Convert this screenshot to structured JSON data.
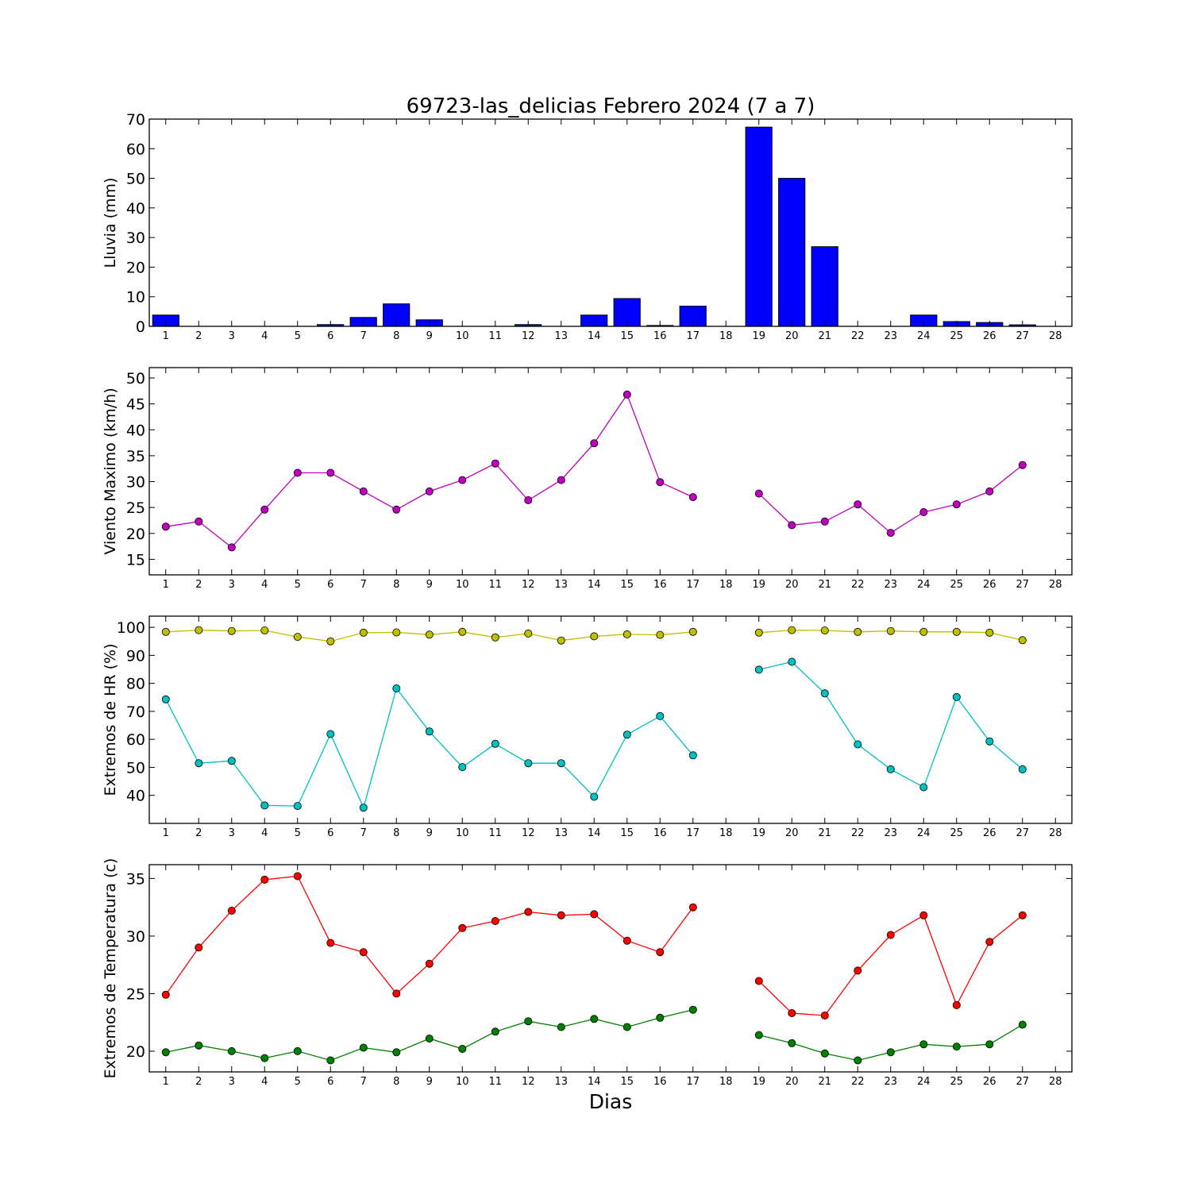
{
  "title": "69723-las_delicias Febrero 2024  (7 a 7)",
  "xlabel": "Dias",
  "colors": {
    "rain": "#0000ff",
    "wind": "#bf00bf",
    "hr_max": "#bfbf00",
    "hr_min": "#00bfbf",
    "t_max": "#ff0000",
    "t_min": "#008000"
  },
  "chart_data": [
    {
      "type": "bar",
      "ylabel": "Lluvia (mm)",
      "ylim": [
        0,
        70
      ],
      "yticks": [
        0,
        10,
        20,
        30,
        40,
        50,
        60,
        70
      ],
      "xlim": [
        0.5,
        28.5
      ],
      "xticks": [
        1,
        2,
        3,
        4,
        5,
        6,
        7,
        8,
        9,
        10,
        11,
        12,
        13,
        14,
        15,
        16,
        17,
        18,
        19,
        20,
        21,
        22,
        23,
        24,
        25,
        26,
        27,
        28
      ],
      "series": [
        {
          "color_key": "rain",
          "x": [
            1,
            2,
            3,
            4,
            5,
            6,
            7,
            8,
            9,
            10,
            11,
            12,
            13,
            14,
            15,
            16,
            17,
            18,
            19,
            20,
            21,
            22,
            23,
            24,
            25,
            26,
            27,
            28
          ],
          "values": [
            3.8,
            0,
            0,
            0,
            0,
            0.6,
            3.0,
            7.6,
            2.2,
            0,
            0,
            0.6,
            0,
            3.8,
            9.4,
            0.3,
            6.8,
            null,
            67.3,
            50.0,
            26.9,
            0,
            0,
            3.8,
            1.6,
            1.3,
            0.5,
            null
          ]
        }
      ]
    },
    {
      "type": "line",
      "ylabel": "Viento Maximo (km/h)",
      "ylim": [
        12,
        52
      ],
      "yticks": [
        15,
        20,
        25,
        30,
        35,
        40,
        45,
        50
      ],
      "xlim": [
        0.5,
        28.5
      ],
      "xticks": [
        1,
        2,
        3,
        4,
        5,
        6,
        7,
        8,
        9,
        10,
        11,
        12,
        13,
        14,
        15,
        16,
        17,
        18,
        19,
        20,
        21,
        22,
        23,
        24,
        25,
        26,
        27,
        28
      ],
      "series": [
        {
          "color_key": "wind",
          "x": [
            1,
            2,
            3,
            4,
            5,
            6,
            7,
            8,
            9,
            10,
            11,
            12,
            13,
            14,
            15,
            16,
            17,
            18,
            19,
            20,
            21,
            22,
            23,
            24,
            25,
            26,
            27,
            28
          ],
          "values": [
            21.3,
            22.3,
            17.3,
            24.6,
            31.7,
            31.7,
            28.1,
            24.6,
            28.1,
            30.3,
            33.5,
            26.4,
            30.3,
            37.4,
            46.8,
            29.9,
            27.0,
            null,
            27.7,
            21.6,
            22.3,
            25.6,
            20.1,
            24.1,
            25.6,
            28.1,
            33.2,
            null
          ]
        }
      ]
    },
    {
      "type": "line",
      "ylabel": "Extremos de HR (%)",
      "ylim": [
        30,
        104
      ],
      "yticks": [
        40,
        50,
        60,
        70,
        80,
        90,
        100
      ],
      "xlim": [
        0.5,
        28.5
      ],
      "xticks": [
        1,
        2,
        3,
        4,
        5,
        6,
        7,
        8,
        9,
        10,
        11,
        12,
        13,
        14,
        15,
        16,
        17,
        18,
        19,
        20,
        21,
        22,
        23,
        24,
        25,
        26,
        27,
        28
      ],
      "series": [
        {
          "color_key": "hr_max",
          "x": [
            1,
            2,
            3,
            4,
            5,
            6,
            7,
            8,
            9,
            10,
            11,
            12,
            13,
            14,
            15,
            16,
            17,
            18,
            19,
            20,
            21,
            22,
            23,
            24,
            25,
            26,
            27,
            28
          ],
          "values": [
            98.4,
            99.0,
            98.7,
            98.9,
            96.6,
            95.0,
            98.1,
            98.2,
            97.4,
            98.4,
            96.4,
            97.8,
            95.3,
            96.8,
            97.5,
            97.3,
            98.4,
            null,
            98.1,
            99.0,
            98.9,
            98.4,
            98.7,
            98.4,
            98.4,
            98.1,
            95.4,
            null
          ]
        },
        {
          "color_key": "hr_min",
          "x": [
            1,
            2,
            3,
            4,
            5,
            6,
            7,
            8,
            9,
            10,
            11,
            12,
            13,
            14,
            15,
            16,
            17,
            18,
            19,
            20,
            21,
            22,
            23,
            24,
            25,
            26,
            27,
            28
          ],
          "values": [
            74.3,
            51.5,
            52.3,
            36.4,
            36.2,
            61.9,
            35.6,
            78.2,
            62.8,
            50.1,
            58.4,
            51.5,
            51.5,
            39.5,
            61.7,
            68.3,
            54.3,
            null,
            84.9,
            87.7,
            76.4,
            58.2,
            49.3,
            42.9,
            75.1,
            59.3,
            49.3,
            null
          ]
        }
      ]
    },
    {
      "type": "line",
      "ylabel": "Extremos de Temperatura (c)",
      "ylim": [
        18.2,
        36.2
      ],
      "yticks": [
        20,
        25,
        30,
        35
      ],
      "xlim": [
        0.5,
        28.5
      ],
      "xticks": [
        1,
        2,
        3,
        4,
        5,
        6,
        7,
        8,
        9,
        10,
        11,
        12,
        13,
        14,
        15,
        16,
        17,
        18,
        19,
        20,
        21,
        22,
        23,
        24,
        25,
        26,
        27,
        28
      ],
      "series": [
        {
          "color_key": "t_max",
          "x": [
            1,
            2,
            3,
            4,
            5,
            6,
            7,
            8,
            9,
            10,
            11,
            12,
            13,
            14,
            15,
            16,
            17,
            18,
            19,
            20,
            21,
            22,
            23,
            24,
            25,
            26,
            27,
            28
          ],
          "values": [
            24.9,
            29.0,
            32.2,
            34.9,
            35.2,
            29.4,
            28.6,
            25.0,
            27.6,
            30.7,
            31.3,
            32.1,
            31.8,
            31.9,
            29.6,
            28.6,
            32.5,
            null,
            26.1,
            23.3,
            23.1,
            27.0,
            30.1,
            31.8,
            24.0,
            29.5,
            31.8,
            null
          ]
        },
        {
          "color_key": "t_min",
          "x": [
            1,
            2,
            3,
            4,
            5,
            6,
            7,
            8,
            9,
            10,
            11,
            12,
            13,
            14,
            15,
            16,
            17,
            18,
            19,
            20,
            21,
            22,
            23,
            24,
            25,
            26,
            27,
            28
          ],
          "values": [
            19.9,
            20.5,
            20.0,
            19.4,
            20.0,
            19.2,
            20.3,
            19.9,
            21.1,
            20.2,
            21.7,
            22.6,
            22.1,
            22.8,
            22.1,
            22.9,
            23.6,
            null,
            21.4,
            20.7,
            19.8,
            19.2,
            19.9,
            20.6,
            20.4,
            20.6,
            22.3,
            null
          ]
        }
      ]
    }
  ]
}
